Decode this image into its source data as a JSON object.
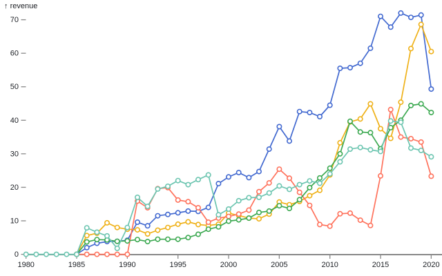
{
  "chart_meta": {
    "title_arrow": "↑",
    "title_text": "revenue"
  },
  "axes": {
    "x": {
      "tick_labels": [
        "1980",
        "1985",
        "1990",
        "1995",
        "2000",
        "2005",
        "2010",
        "2015",
        "2020"
      ],
      "tick_years": [
        1980,
        1985,
        1990,
        1995,
        2000,
        2005,
        2010,
        2015,
        2020
      ]
    },
    "y": {
      "tick_labels": [
        "0",
        "10",
        "20",
        "30",
        "40",
        "50",
        "60",
        "70"
      ],
      "tick_values": [
        0,
        10,
        20,
        30,
        40,
        50,
        60,
        70
      ]
    }
  },
  "style": {
    "axis_line_color": "#888888",
    "tick_color": "#888888",
    "label_color": "#1b1e23",
    "marker_fill": "#ffffff"
  },
  "chart_data": {
    "type": "line",
    "title": "revenue",
    "xlabel": "",
    "ylabel": "revenue",
    "xlim": [
      1980,
      2020
    ],
    "ylim": [
      0,
      75
    ],
    "grid": false,
    "legend": "none",
    "marker": "open-circle",
    "x": [
      1980,
      1981,
      1982,
      1983,
      1984,
      1985,
      1986,
      1987,
      1988,
      1989,
      1990,
      1991,
      1992,
      1993,
      1994,
      1995,
      1996,
      1997,
      1998,
      1999,
      2000,
      2001,
      2002,
      2003,
      2004,
      2005,
      2006,
      2007,
      2008,
      2009,
      2010,
      2011,
      2012,
      2013,
      2014,
      2015,
      2016,
      2017,
      2018,
      2019,
      2020
    ],
    "series": [
      {
        "name": "blue",
        "color": "#4269d0",
        "values": [
          null,
          null,
          null,
          null,
          null,
          0,
          2,
          3.3,
          3.8,
          3.9,
          4.2,
          9.6,
          8.5,
          11.5,
          11.9,
          12.4,
          12.9,
          12.8,
          14,
          21.1,
          23.1,
          24.4,
          22.9,
          24.7,
          31.4,
          38.1,
          33.8,
          42.6,
          42.3,
          41.1,
          44.5,
          55.5,
          55.7,
          57,
          61.5,
          71,
          67.8,
          72,
          70.7,
          71.4,
          49.3
        ]
      },
      {
        "name": "orange",
        "color": "#efb118",
        "values": [
          null,
          null,
          null,
          null,
          null,
          0,
          5.6,
          6.3,
          9.4,
          8,
          7.5,
          7.3,
          6.1,
          7.2,
          8,
          9,
          9.7,
          8.9,
          8.6,
          9,
          12.3,
          11.6,
          10.8,
          10.6,
          12,
          15.6,
          14.8,
          15.8,
          17.5,
          19.1,
          23.7,
          33.3,
          39.5,
          40.4,
          44.9,
          37.5,
          34.6,
          45.4,
          61.4,
          68.6,
          60.5
        ]
      },
      {
        "name": "red",
        "color": "#ff725c",
        "values": [
          null,
          null,
          null,
          null,
          null,
          0,
          0,
          0,
          0,
          0,
          0,
          15.9,
          13.9,
          19.6,
          19.9,
          16.2,
          15.7,
          13.9,
          9.6,
          10.8,
          11.3,
          12,
          13.2,
          18.7,
          21.3,
          25.4,
          22.7,
          18.5,
          14.6,
          8.9,
          8.4,
          12.1,
          12.3,
          10.2,
          8.6,
          23.4,
          43.2,
          35,
          34.5,
          33.5,
          23.3
        ]
      },
      {
        "name": "green",
        "color": "#3ca951",
        "values": [
          null,
          null,
          null,
          null,
          null,
          0,
          3.7,
          4.4,
          4.3,
          3.9,
          4,
          4.4,
          3.8,
          4.5,
          4.5,
          4.5,
          5,
          6,
          7.5,
          8.2,
          9.9,
          10.3,
          10.8,
          12.5,
          12.9,
          14.5,
          13.7,
          16.3,
          19.9,
          22.8,
          25.7,
          30,
          39.7,
          36.5,
          36.3,
          31.5,
          37.8,
          40,
          44.4,
          44.9,
          42.3
        ]
      },
      {
        "name": "teal",
        "color": "#6cc5b0",
        "values": [
          0,
          0,
          0,
          0,
          0,
          0,
          7.9,
          6.6,
          5.5,
          1.8,
          8,
          17,
          14.3,
          19.5,
          20.3,
          22,
          20.8,
          22.3,
          23.7,
          11.8,
          13.5,
          16,
          16.9,
          17,
          18.3,
          20.4,
          19.4,
          20.8,
          21.9,
          21.2,
          24,
          27.6,
          31.4,
          31.9,
          31.2,
          30.7,
          39.8,
          39.4,
          31.7,
          31,
          29.1
        ]
      }
    ]
  }
}
